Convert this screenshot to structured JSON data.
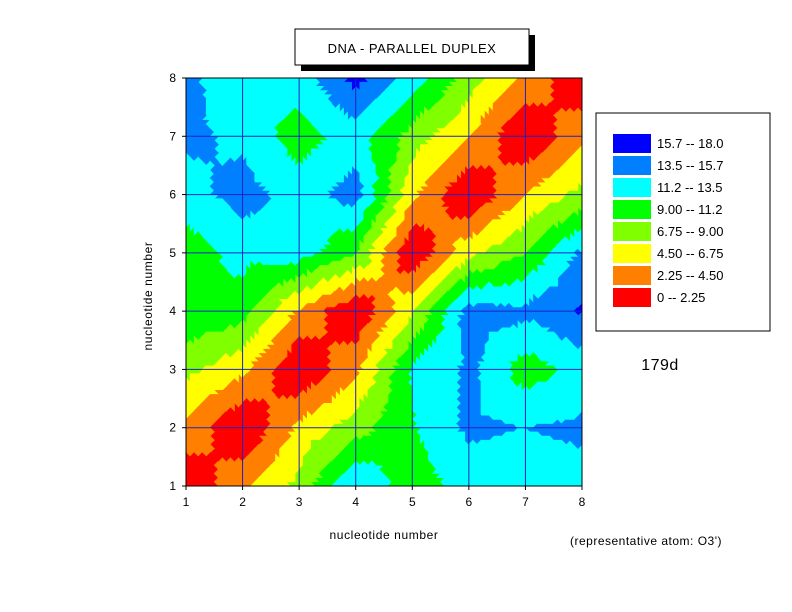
{
  "chart_data": {
    "type": "heatmap",
    "subtype": "filled-contour",
    "title": "DNA - PARALLEL DUPLEX",
    "xlabel": "nucleotide number",
    "ylabel": "nucleotide number",
    "x": [
      1,
      2,
      3,
      4,
      5,
      6,
      7,
      8
    ],
    "y": [
      1,
      2,
      3,
      4,
      5,
      6,
      7,
      8
    ],
    "xlim": [
      1,
      8
    ],
    "ylim": [
      1,
      8
    ],
    "xticks": [
      "1",
      "2",
      "3",
      "4",
      "5",
      "6",
      "7",
      "8"
    ],
    "yticks": [
      "1",
      "2",
      "3",
      "4",
      "5",
      "6",
      "7",
      "8"
    ],
    "grid": true,
    "z_rows_y1_to_y8": [
      [
        0.0,
        4.0,
        7.5,
        13.5,
        10.0,
        12.0,
        12.0,
        12.5
      ],
      [
        4.0,
        0.0,
        5.0,
        8.0,
        11.0,
        14.0,
        13.5,
        14.0
      ],
      [
        7.5,
        5.0,
        0.0,
        4.0,
        11.5,
        14.0,
        10.0,
        12.0
      ],
      [
        11.0,
        10.0,
        4.0,
        0.0,
        6.5,
        14.5,
        14.0,
        16.0
      ],
      [
        10.0,
        12.0,
        12.5,
        9.0,
        0.0,
        6.0,
        9.0,
        14.0
      ],
      [
        12.5,
        14.5,
        12.5,
        14.5,
        5.0,
        0.0,
        4.5,
        7.5
      ],
      [
        14.0,
        13.0,
        10.0,
        12.5,
        8.0,
        4.5,
        0.0,
        4.0
      ],
      [
        14.0,
        12.0,
        12.5,
        16.5,
        12.5,
        8.0,
        4.0,
        0.0
      ]
    ],
    "legend": {
      "placement": "right",
      "levels": [
        {
          "range": "15.7  --  18.0",
          "min": 15.7,
          "max": 18.0,
          "color": "#0000ff"
        },
        {
          "range": "13.5  --  15.7",
          "min": 13.5,
          "max": 15.7,
          "color": "#0080ff"
        },
        {
          "range": "11.2  --  13.5",
          "min": 11.2,
          "max": 13.5,
          "color": "#00ffff"
        },
        {
          "range": "9.00  --  11.2",
          "min": 9.0,
          "max": 11.2,
          "color": "#00ff00"
        },
        {
          "range": "6.75  --  9.00",
          "min": 6.75,
          "max": 9.0,
          "color": "#80ff00"
        },
        {
          "range": "4.50  --  6.75",
          "min": 4.5,
          "max": 6.75,
          "color": "#ffff00"
        },
        {
          "range": "2.25  --  4.50",
          "min": 2.25,
          "max": 4.5,
          "color": "#ff8000"
        },
        {
          "range": "0  --  2.25",
          "min": 0.0,
          "max": 2.25,
          "color": "#ff0000"
        }
      ]
    },
    "annotations": {
      "id_label": "179d",
      "atom_note": "(representative atom: O3')"
    }
  }
}
